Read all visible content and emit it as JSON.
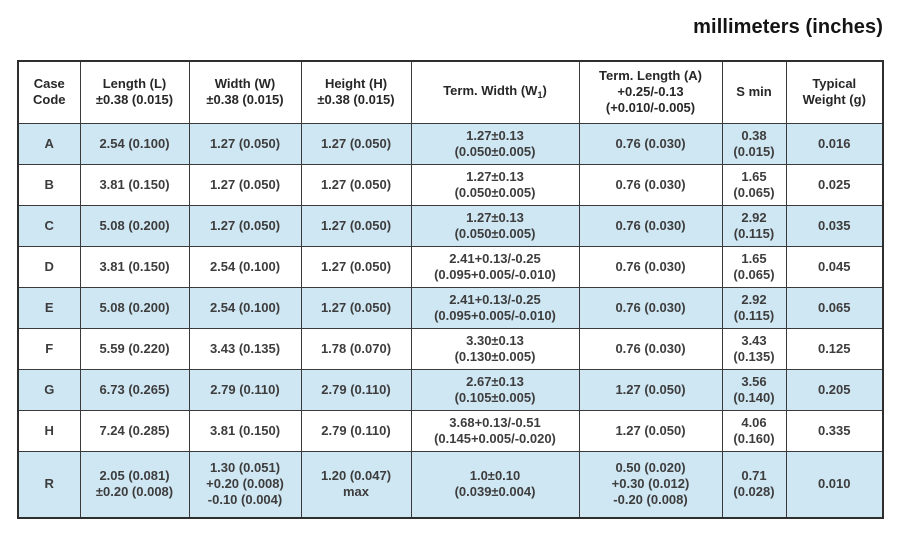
{
  "title": "millimeters (inches)",
  "colors": {
    "row_shaded": "#cfe6f3",
    "border": "#3a3a3a",
    "text": "#3d3d3d"
  },
  "table": {
    "headers": [
      {
        "id": "case-code",
        "lines": [
          "Case",
          "Code"
        ]
      },
      {
        "id": "length",
        "lines": [
          "Length (L)",
          "±0.38 (0.015)"
        ]
      },
      {
        "id": "width",
        "lines": [
          "Width (W)",
          "±0.38 (0.015)"
        ]
      },
      {
        "id": "height",
        "lines": [
          "Height (H)",
          "±0.38 (0.015)"
        ]
      },
      {
        "id": "term-width",
        "lines": [
          [
            "Term. Width (W",
            {
              "sub": "1"
            },
            ")"
          ]
        ]
      },
      {
        "id": "term-length",
        "lines": [
          "Term. Length (A)",
          "+0.25/-0.13",
          "(+0.010/-0.005)"
        ]
      },
      {
        "id": "s-min",
        "lines": [
          "S min"
        ]
      },
      {
        "id": "weight",
        "lines": [
          "Typical",
          "Weight (g)"
        ]
      }
    ],
    "rows": [
      {
        "case_code": "A",
        "shaded": true,
        "tall": false,
        "length": [
          "2.54 (0.100)"
        ],
        "width": [
          "1.27 (0.050)"
        ],
        "height": [
          "1.27 (0.050)"
        ],
        "term_width": [
          "1.27±0.13",
          "(0.050±0.005)"
        ],
        "term_length": [
          "0.76 (0.030)"
        ],
        "s_min": [
          "0.38",
          "(0.015)"
        ],
        "weight": [
          "0.016"
        ]
      },
      {
        "case_code": "B",
        "shaded": false,
        "tall": false,
        "length": [
          "3.81 (0.150)"
        ],
        "width": [
          "1.27 (0.050)"
        ],
        "height": [
          "1.27 (0.050)"
        ],
        "term_width": [
          "1.27±0.13",
          "(0.050±0.005)"
        ],
        "term_length": [
          "0.76 (0.030)"
        ],
        "s_min": [
          "1.65",
          "(0.065)"
        ],
        "weight": [
          "0.025"
        ]
      },
      {
        "case_code": "C",
        "shaded": true,
        "tall": false,
        "length": [
          "5.08 (0.200)"
        ],
        "width": [
          "1.27 (0.050)"
        ],
        "height": [
          "1.27 (0.050)"
        ],
        "term_width": [
          "1.27±0.13",
          "(0.050±0.005)"
        ],
        "term_length": [
          "0.76 (0.030)"
        ],
        "s_min": [
          "2.92",
          "(0.115)"
        ],
        "weight": [
          "0.035"
        ]
      },
      {
        "case_code": "D",
        "shaded": false,
        "tall": false,
        "length": [
          "3.81 (0.150)"
        ],
        "width": [
          "2.54 (0.100)"
        ],
        "height": [
          "1.27 (0.050)"
        ],
        "term_width": [
          "2.41+0.13/-0.25",
          "(0.095+0.005/-0.010)"
        ],
        "term_length": [
          "0.76 (0.030)"
        ],
        "s_min": [
          "1.65",
          "(0.065)"
        ],
        "weight": [
          "0.045"
        ]
      },
      {
        "case_code": "E",
        "shaded": true,
        "tall": false,
        "length": [
          "5.08 (0.200)"
        ],
        "width": [
          "2.54 (0.100)"
        ],
        "height": [
          "1.27 (0.050)"
        ],
        "term_width": [
          "2.41+0.13/-0.25",
          "(0.095+0.005/-0.010)"
        ],
        "term_length": [
          "0.76 (0.030)"
        ],
        "s_min": [
          "2.92",
          "(0.115)"
        ],
        "weight": [
          "0.065"
        ]
      },
      {
        "case_code": "F",
        "shaded": false,
        "tall": false,
        "length": [
          "5.59 (0.220)"
        ],
        "width": [
          "3.43 (0.135)"
        ],
        "height": [
          "1.78 (0.070)"
        ],
        "term_width": [
          "3.30±0.13",
          "(0.130±0.005)"
        ],
        "term_length": [
          "0.76 (0.030)"
        ],
        "s_min": [
          "3.43",
          "(0.135)"
        ],
        "weight": [
          "0.125"
        ]
      },
      {
        "case_code": "G",
        "shaded": true,
        "tall": false,
        "length": [
          "6.73 (0.265)"
        ],
        "width": [
          "2.79 (0.110)"
        ],
        "height": [
          "2.79 (0.110)"
        ],
        "term_width": [
          "2.67±0.13",
          "(0.105±0.005)"
        ],
        "term_length": [
          "1.27 (0.050)"
        ],
        "s_min": [
          "3.56",
          "(0.140)"
        ],
        "weight": [
          "0.205"
        ]
      },
      {
        "case_code": "H",
        "shaded": false,
        "tall": false,
        "length": [
          "7.24 (0.285)"
        ],
        "width": [
          "3.81 (0.150)"
        ],
        "height": [
          "2.79 (0.110)"
        ],
        "term_width": [
          "3.68+0.13/-0.51",
          "(0.145+0.005/-0.020)"
        ],
        "term_length": [
          "1.27 (0.050)"
        ],
        "s_min": [
          "4.06",
          "(0.160)"
        ],
        "weight": [
          "0.335"
        ]
      },
      {
        "case_code": "R",
        "shaded": true,
        "tall": true,
        "length": [
          "2.05 (0.081)",
          "±0.20 (0.008)"
        ],
        "width": [
          "1.30 (0.051)",
          "+0.20 (0.008)",
          "-0.10 (0.004)"
        ],
        "height": [
          "1.20 (0.047)",
          "max"
        ],
        "term_width": [
          "1.0±0.10",
          "(0.039±0.004)"
        ],
        "term_length": [
          "0.50 (0.020)",
          "+0.30 (0.012)",
          "-0.20 (0.008)"
        ],
        "s_min": [
          "0.71",
          "(0.028)"
        ],
        "weight": [
          "0.010"
        ]
      }
    ]
  }
}
